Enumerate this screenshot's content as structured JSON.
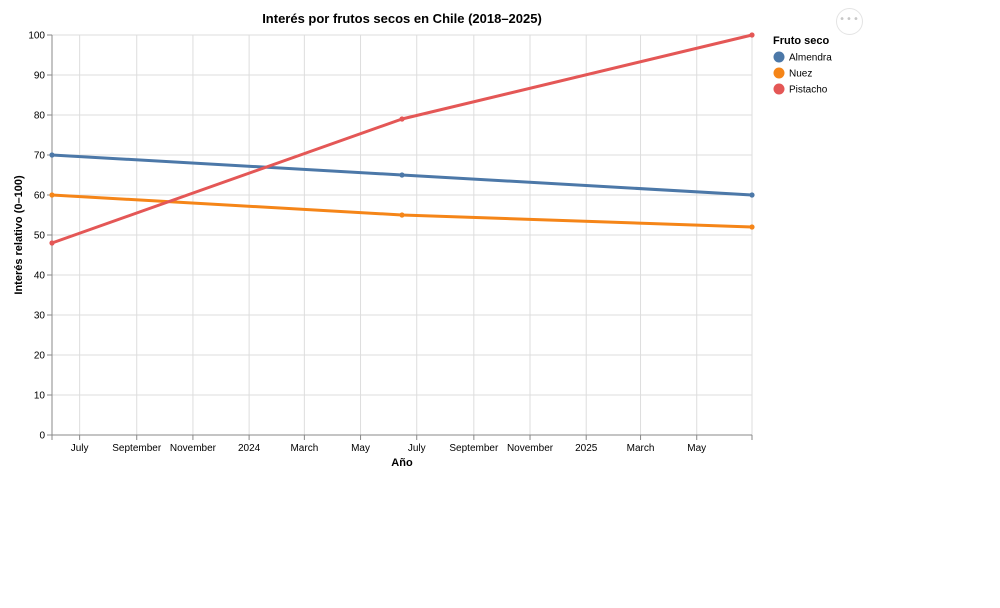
{
  "chart_data": {
    "type": "line",
    "title": "Interés por frutos secos en Chile (2018–2025)",
    "xlabel": "Año",
    "ylabel": "Interés relativo (0–100)",
    "ylim": [
      0,
      100
    ],
    "yticks": [
      "0",
      "10",
      "20",
      "30",
      "40",
      "50",
      "60",
      "70",
      "80",
      "90",
      "100"
    ],
    "xrange": [
      "2023-06-01",
      "2025-06-30"
    ],
    "xticks": [
      {
        "date": "2023-07-01",
        "label": "July"
      },
      {
        "date": "2023-09-01",
        "label": "September"
      },
      {
        "date": "2023-11-01",
        "label": "November"
      },
      {
        "date": "2024-01-01",
        "label": "2024"
      },
      {
        "date": "2024-03-01",
        "label": "March"
      },
      {
        "date": "2024-05-01",
        "label": "May"
      },
      {
        "date": "2024-07-01",
        "label": "July"
      },
      {
        "date": "2024-09-01",
        "label": "September"
      },
      {
        "date": "2024-11-01",
        "label": "November"
      },
      {
        "date": "2025-01-01",
        "label": "2025"
      },
      {
        "date": "2025-03-01",
        "label": "March"
      },
      {
        "date": "2025-05-01",
        "label": "May"
      }
    ],
    "extra_tick_dates": [
      "2023-06-01",
      "2025-06-30"
    ],
    "x": [
      "2023-06-01",
      "2024-06-15",
      "2025-06-30"
    ],
    "legend_title": "Fruto seco",
    "legend_position": "right",
    "grid": true,
    "series": [
      {
        "name": "Almendra",
        "color": "#4c78a8",
        "values": [
          70,
          65,
          60
        ]
      },
      {
        "name": "Nuez",
        "color": "#f58518",
        "values": [
          60,
          55,
          52
        ]
      },
      {
        "name": "Pistacho",
        "color": "#e45756",
        "values": [
          48,
          79,
          100
        ]
      }
    ]
  },
  "menu": {
    "label": "•••"
  }
}
